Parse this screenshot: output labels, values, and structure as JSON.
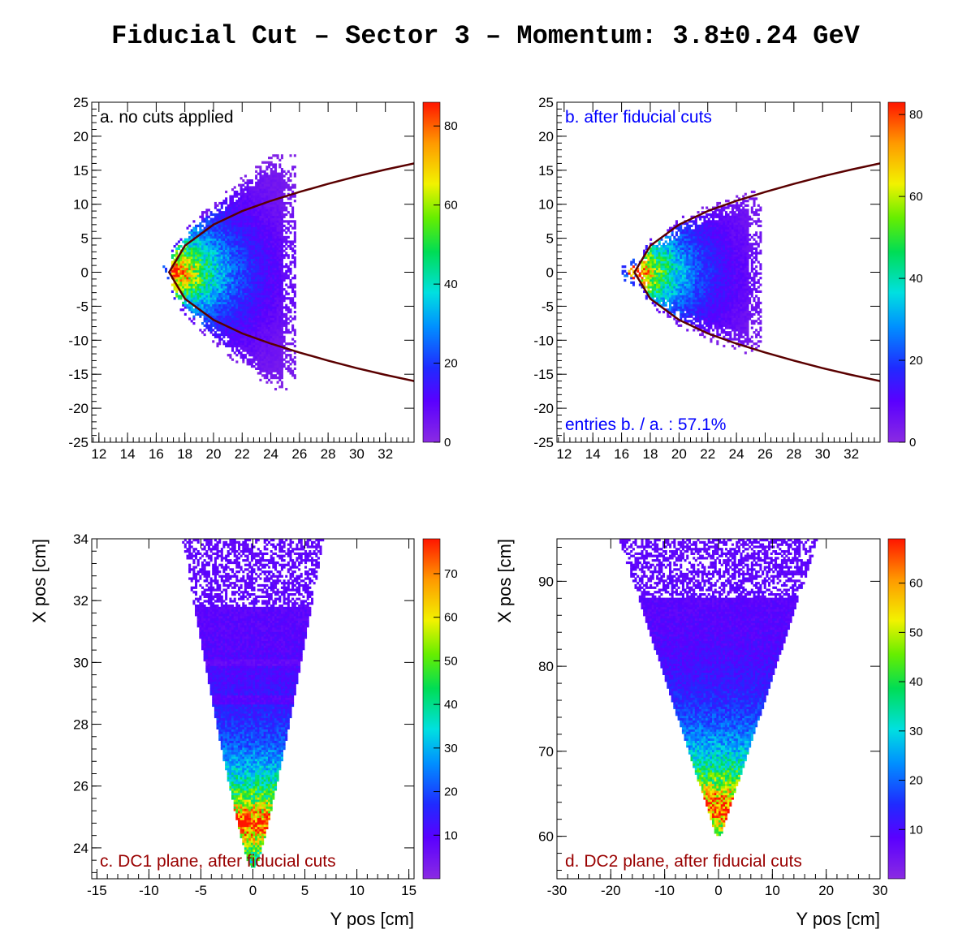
{
  "title": "Fiducial Cut – Sector 3 – Momentum: 3.8±0.24 GeV",
  "chart_data": [
    {
      "type": "heatmap",
      "panel": "a",
      "annotation": "a. no cuts applied",
      "annotation_color": "#000000",
      "xlabel": "",
      "ylabel": "",
      "xlim": [
        11.5,
        34
      ],
      "ylim": [
        -25,
        25
      ],
      "xticks": [
        12,
        14,
        16,
        18,
        20,
        22,
        24,
        26,
        28,
        30,
        32
      ],
      "yticks": [
        -25,
        -20,
        -15,
        -10,
        -5,
        0,
        5,
        10,
        15,
        20,
        25
      ],
      "zlim": [
        0,
        86
      ],
      "zticks": [
        0,
        20,
        40,
        60,
        80
      ],
      "shape": "clamshell",
      "vertex_x": 17.0,
      "max_x": 25.7,
      "half_width_at_max": 16,
      "peak": [
        17.4,
        0
      ],
      "cut_curve": {
        "apex_x": 16.9,
        "points": [
          [
            16.9,
            0
          ],
          [
            18,
            3.9
          ],
          [
            20,
            7.0
          ],
          [
            22,
            9.0
          ],
          [
            24,
            10.5
          ],
          [
            26,
            11.8
          ],
          [
            28,
            13.0
          ],
          [
            30,
            14.1
          ],
          [
            32,
            15.1
          ],
          [
            34,
            16.0
          ]
        ],
        "color": "#5a0000"
      }
    },
    {
      "type": "heatmap",
      "panel": "b",
      "annotation": "b. after fiducial cuts",
      "annotation_color": "#0000ff",
      "annotation2": "entries b. / a. : 57.1%",
      "xlabel": "",
      "ylabel": "",
      "xlim": [
        11.5,
        34
      ],
      "ylim": [
        -25,
        25
      ],
      "xticks": [
        12,
        14,
        16,
        18,
        20,
        22,
        24,
        26,
        28,
        30,
        32
      ],
      "yticks": [
        -25,
        -20,
        -15,
        -10,
        -5,
        0,
        5,
        10,
        15,
        20,
        25
      ],
      "zlim": [
        0,
        83
      ],
      "zticks": [
        0,
        20,
        40,
        60,
        80
      ],
      "shape": "inside-curve",
      "vertex_x": 16.4,
      "max_x": 25.7,
      "peak": [
        17.0,
        0
      ],
      "cut_curve": {
        "apex_x": 16.9,
        "points": [
          [
            16.9,
            0
          ],
          [
            18,
            3.9
          ],
          [
            20,
            7.0
          ],
          [
            22,
            9.0
          ],
          [
            24,
            10.5
          ],
          [
            26,
            11.8
          ],
          [
            28,
            13.0
          ],
          [
            30,
            14.1
          ],
          [
            32,
            15.1
          ],
          [
            34,
            16.0
          ]
        ],
        "color": "#5a0000"
      }
    },
    {
      "type": "heatmap",
      "panel": "c",
      "annotation": "c. DC1 plane, after fiducial cuts",
      "annotation_color": "#990000",
      "xlabel": "Y pos [cm]",
      "ylabel": "X pos [cm]",
      "xlim": [
        -15.5,
        15.5
      ],
      "ylim": [
        23,
        34
      ],
      "xticks": [
        -15,
        -10,
        -5,
        0,
        5,
        10,
        15
      ],
      "yticks": [
        24,
        26,
        28,
        30,
        32,
        34
      ],
      "zlim": [
        0,
        78
      ],
      "zticks": [
        10,
        20,
        30,
        40,
        50,
        60,
        70
      ],
      "shape": "wedge",
      "apex": [
        0,
        23.4
      ],
      "top_halfwidth": 6.5,
      "peak": [
        0,
        24.8
      ]
    },
    {
      "type": "heatmap",
      "panel": "d",
      "annotation": "d. DC2 plane, after fiducial cuts",
      "annotation_color": "#990000",
      "xlabel": "Y pos [cm]",
      "ylabel": "X pos [cm]",
      "xlim": [
        -30,
        30
      ],
      "ylim": [
        55,
        95
      ],
      "xticks": [
        -30,
        -20,
        -10,
        0,
        10,
        20,
        30
      ],
      "yticks": [
        60,
        70,
        80,
        90
      ],
      "zlim": [
        0,
        69
      ],
      "zticks": [
        10,
        20,
        30,
        40,
        50,
        60
      ],
      "shape": "wedge",
      "apex": [
        0,
        60.2
      ],
      "top_halfwidth": 18,
      "peak": [
        0,
        63.5
      ]
    }
  ]
}
